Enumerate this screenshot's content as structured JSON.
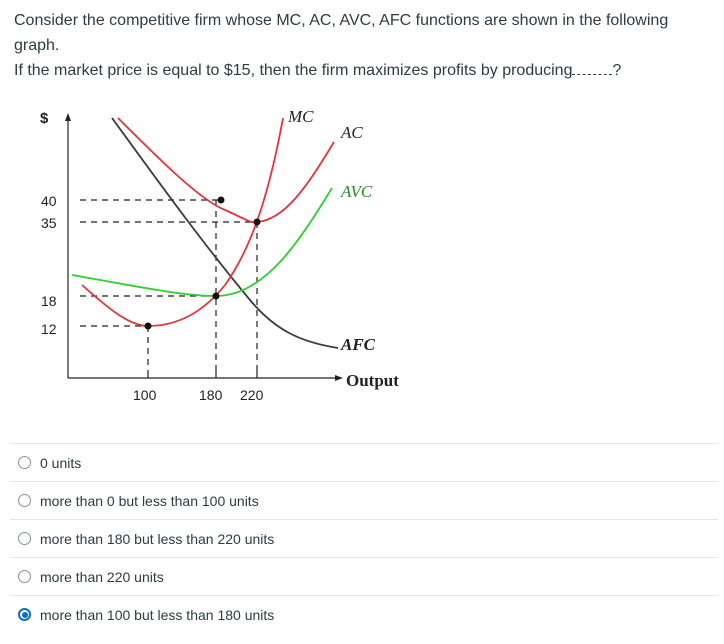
{
  "question": {
    "line1": "Consider the competitive firm whose MC, AC, AVC, AFC functions are shown in the following graph.",
    "line2": "If the market price is equal to $15, then the firm maximizes profits by producing",
    "line2_end": "?"
  },
  "graph": {
    "y_axis_symbol": "$",
    "y_ticks": [
      "40",
      "35",
      "18",
      "12"
    ],
    "x_ticks": [
      "100",
      "180",
      "220"
    ],
    "labels": {
      "mc": "MC",
      "ac": "AC",
      "avc": "AVC",
      "afc": "AFC",
      "output": "Output"
    },
    "colors": {
      "mc": "#e8323c",
      "ac": "#e8323c",
      "avc": "#2dd12d",
      "afc": "#3a3a3a"
    }
  },
  "answers": [
    {
      "label": "0 units",
      "selected": false
    },
    {
      "label": "more than 0 but less than 100 units",
      "selected": false
    },
    {
      "label": "more than 180 but less than 220 units",
      "selected": false
    },
    {
      "label": "more than 220 units",
      "selected": false
    },
    {
      "label": "more than 100 but less than 180 units",
      "selected": true
    }
  ]
}
